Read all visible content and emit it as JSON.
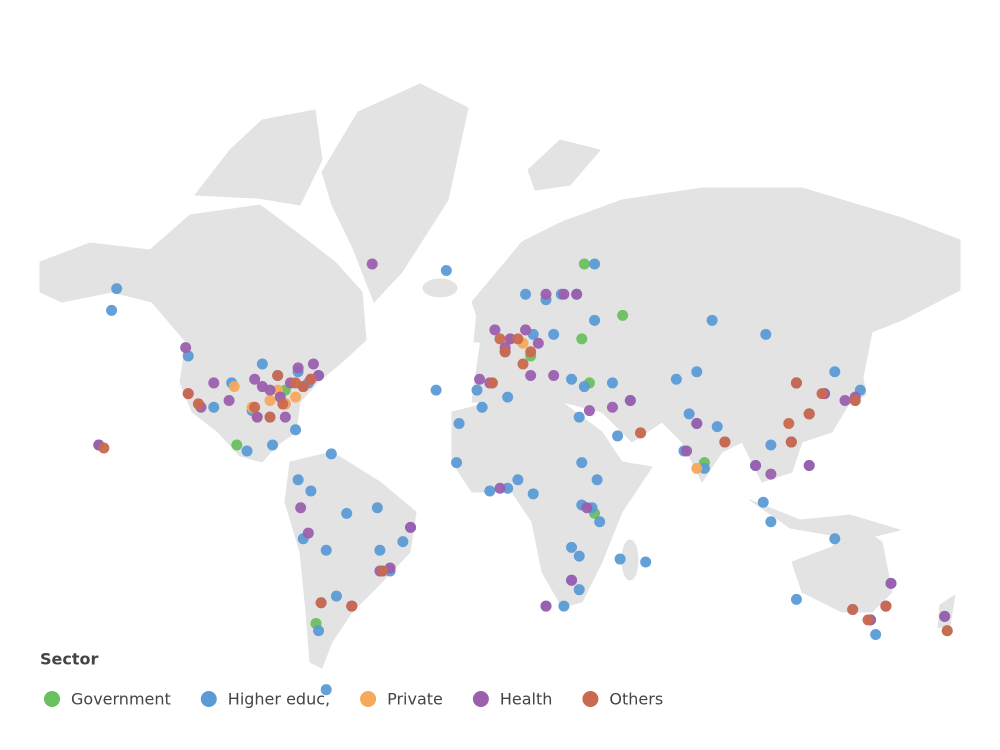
{
  "legend_title": "Sector",
  "series": [
    {
      "name": "Government",
      "color": "#6abf5f",
      "points": [
        [
          33,
          65
        ],
        [
          48,
          56
        ],
        [
          32,
          51
        ],
        [
          35,
          40
        ],
        [
          -103,
          21
        ],
        [
          -72,
          -39
        ],
        [
          37,
          -3
        ],
        [
          175,
          -41
        ],
        [
          12,
          47
        ],
        [
          -84,
          38
        ],
        [
          80,
          15
        ]
      ]
    },
    {
      "name": "Higher educ,",
      "color": "#5b9bd5",
      "points": [
        [
          -150,
          61
        ],
        [
          -152,
          57
        ],
        [
          -122,
          47
        ],
        [
          -118,
          34
        ],
        [
          -112,
          33
        ],
        [
          -105,
          40
        ],
        [
          -97,
          32
        ],
        [
          -90,
          30
        ],
        [
          -84,
          34
        ],
        [
          -80,
          26
        ],
        [
          -75,
          40
        ],
        [
          -71,
          42
        ],
        [
          -79,
          43
        ],
        [
          -87,
          42
        ],
        [
          -93,
          45
        ],
        [
          -99,
          19
        ],
        [
          -89,
          21
        ],
        [
          -79,
          9
        ],
        [
          -74,
          5
        ],
        [
          -77,
          -12
        ],
        [
          -70,
          -33
        ],
        [
          -58,
          -34
        ],
        [
          -64,
          -31
        ],
        [
          -47,
          -16
        ],
        [
          -46,
          -23
        ],
        [
          -43,
          -23
        ],
        [
          -38,
          -13
        ],
        [
          -35,
          -8
        ],
        [
          -60,
          -3
        ],
        [
          -48,
          -1
        ],
        [
          -68,
          -16
        ],
        [
          -68,
          -55
        ],
        [
          -71,
          -41
        ],
        [
          -3,
          40
        ],
        [
          -9,
          38
        ],
        [
          2,
          48
        ],
        [
          13,
          52
        ],
        [
          21,
          52
        ],
        [
          37,
          55
        ],
        [
          30,
          60
        ],
        [
          24,
          60
        ],
        [
          18,
          59
        ],
        [
          10,
          60
        ],
        [
          37,
          65
        ],
        [
          28,
          41
        ],
        [
          33,
          39
        ],
        [
          44,
          40
        ],
        [
          51,
          35
        ],
        [
          46,
          24
        ],
        [
          55,
          25
        ],
        [
          69,
          41
        ],
        [
          77,
          43
        ],
        [
          83,
          55
        ],
        [
          104,
          52
        ],
        [
          131,
          43
        ],
        [
          116,
          40
        ],
        [
          121,
          31
        ],
        [
          114,
          22
        ],
        [
          127,
          37
        ],
        [
          139,
          35
        ],
        [
          141,
          38
        ],
        [
          106,
          21
        ],
        [
          100,
          14
        ],
        [
          103,
          1
        ],
        [
          106,
          -6
        ],
        [
          121,
          14
        ],
        [
          77,
          28
        ],
        [
          72,
          19
        ],
        [
          80,
          13
        ],
        [
          88,
          22
        ],
        [
          85,
          27
        ],
        [
          74,
          31
        ],
        [
          31,
          30
        ],
        [
          3,
          36
        ],
        [
          -7,
          33
        ],
        [
          -17,
          15
        ],
        [
          -4,
          5
        ],
        [
          3,
          6
        ],
        [
          7,
          9
        ],
        [
          13,
          4
        ],
        [
          32,
          15
        ],
        [
          38,
          9
        ],
        [
          36,
          -1
        ],
        [
          39,
          -6
        ],
        [
          32,
          0
        ],
        [
          28,
          -15
        ],
        [
          31,
          -18
        ],
        [
          28,
          -26
        ],
        [
          18,
          -34
        ],
        [
          25,
          -34
        ],
        [
          31,
          -29
        ],
        [
          47,
          -19
        ],
        [
          57,
          -20
        ],
        [
          -16,
          28
        ],
        [
          -25,
          38
        ],
        [
          151,
          -34
        ],
        [
          145,
          -38
        ],
        [
          153,
          -27
        ],
        [
          138,
          -35
        ],
        [
          116,
          -32
        ],
        [
          147,
          -42
        ],
        [
          174,
          -37
        ],
        [
          131,
          -12
        ],
        [
          -157,
          21
        ],
        [
          -66,
          18
        ],
        [
          -21,
          64
        ]
      ]
    },
    {
      "name": "Private",
      "color": "#f5a95b",
      "points": [
        [
          -95,
          30
        ],
        [
          -97,
          33
        ],
        [
          -84,
          34
        ],
        [
          -90,
          35
        ],
        [
          -104,
          39
        ],
        [
          -118,
          34
        ],
        [
          -80,
          36
        ],
        [
          9,
          50
        ],
        [
          4,
          51
        ],
        [
          77,
          13
        ],
        [
          55,
          25
        ],
        [
          -87,
          38
        ],
        [
          -74,
          41
        ]
      ]
    },
    {
      "name": "Health",
      "color": "#9b5fae",
      "points": [
        [
          -123,
          49
        ],
        [
          -122,
          37
        ],
        [
          -117,
          33
        ],
        [
          -112,
          40
        ],
        [
          -96,
          41
        ],
        [
          -93,
          39
        ],
        [
          -90,
          38
        ],
        [
          -86,
          36
        ],
        [
          -82,
          40
        ],
        [
          -77,
          39
        ],
        [
          -74,
          41
        ],
        [
          -71,
          42
        ],
        [
          -84,
          30
        ],
        [
          -95,
          30
        ],
        [
          -73,
          45
        ],
        [
          -79,
          44
        ],
        [
          -106,
          35
        ],
        [
          -157,
          21
        ],
        [
          -58,
          -34
        ],
        [
          -47,
          -23
        ],
        [
          -43,
          -22
        ],
        [
          -35,
          -8
        ],
        [
          -78,
          -1
        ],
        [
          -75,
          -10
        ],
        [
          -2,
          53
        ],
        [
          2,
          49
        ],
        [
          4,
          51
        ],
        [
          10,
          53
        ],
        [
          15,
          50
        ],
        [
          12,
          42
        ],
        [
          -4,
          40
        ],
        [
          -8,
          41
        ],
        [
          18,
          60
        ],
        [
          25,
          60
        ],
        [
          30,
          60
        ],
        [
          35,
          32
        ],
        [
          44,
          33
        ],
        [
          51,
          35
        ],
        [
          21,
          42
        ],
        [
          28,
          -26
        ],
        [
          18,
          -34
        ],
        [
          34,
          -1
        ],
        [
          0,
          6
        ],
        [
          73,
          19
        ],
        [
          77,
          28
        ],
        [
          88,
          22
        ],
        [
          100,
          14
        ],
        [
          106,
          11
        ],
        [
          121,
          14
        ],
        [
          114,
          22
        ],
        [
          121,
          31
        ],
        [
          116,
          40
        ],
        [
          127,
          37
        ],
        [
          135,
          35
        ],
        [
          139,
          36
        ],
        [
          151,
          -34
        ],
        [
          145,
          -38
        ],
        [
          174,
          -37
        ],
        [
          -50,
          65
        ],
        [
          153,
          -27
        ]
      ]
    },
    {
      "name": "Others",
      "color": "#c9694f",
      "points": [
        [
          -118,
          34
        ],
        [
          -122,
          37
        ],
        [
          -96,
          33
        ],
        [
          -90,
          30
        ],
        [
          -85,
          34
        ],
        [
          -87,
          42
        ],
        [
          -77,
          39
        ],
        [
          -74,
          41
        ],
        [
          -80,
          40
        ],
        [
          -155,
          20
        ],
        [
          -58,
          -34
        ],
        [
          -70,
          -33
        ],
        [
          -46,
          -23
        ],
        [
          0,
          51
        ],
        [
          2,
          48
        ],
        [
          7,
          51
        ],
        [
          12,
          48
        ],
        [
          9,
          45
        ],
        [
          -3,
          40
        ],
        [
          55,
          25
        ],
        [
          88,
          22
        ],
        [
          114,
          22
        ],
        [
          113,
          28
        ],
        [
          121,
          31
        ],
        [
          116,
          40
        ],
        [
          126,
          37
        ],
        [
          139,
          35
        ],
        [
          151,
          -34
        ],
        [
          144,
          -38
        ],
        [
          138,
          -35
        ],
        [
          175,
          -41
        ]
      ]
    }
  ]
}
